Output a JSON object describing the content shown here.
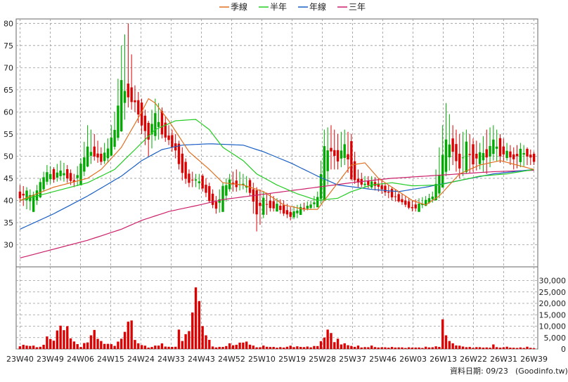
{
  "chart_data": [
    {
      "type": "line",
      "subtype": "candlestick",
      "title": "",
      "legend_position": "top-center",
      "grid": true,
      "ylim": [
        25,
        81
      ],
      "yticks": [
        30,
        35,
        40,
        45,
        50,
        55,
        60,
        65,
        70,
        75,
        80
      ],
      "x_ticks": [
        "23W40",
        "23W49",
        "24W06",
        "24W15",
        "24W24",
        "24W33",
        "24W43",
        "24W52",
        "25W10",
        "25W19",
        "25W28",
        "25W37",
        "25W46",
        "26W03",
        "26W13",
        "26W22",
        "26W31",
        "26W39"
      ],
      "legend": [
        {
          "label": "季線",
          "color": "#e07020"
        },
        {
          "label": "半年",
          "color": "#22cc22"
        },
        {
          "label": "年線",
          "color": "#1a5fc4"
        },
        {
          "label": "三年",
          "color": "#cc1f6a"
        }
      ],
      "colors": {
        "up": "#00aa00",
        "down": "#dd0000"
      },
      "anchors": [
        [
          0,
          42,
          40.5,
          43.5,
          39.5
        ],
        [
          2,
          40.5,
          42,
          43,
          38
        ],
        [
          4,
          38,
          41,
          42,
          37.5
        ],
        [
          6,
          41,
          44,
          45,
          40.5
        ],
        [
          8,
          44,
          46.5,
          48,
          43.5
        ],
        [
          10,
          46.5,
          45,
          47.5,
          44
        ],
        [
          12,
          45,
          47,
          49,
          44.5
        ],
        [
          14,
          47,
          45,
          48,
          44
        ],
        [
          16,
          45,
          44,
          46,
          43
        ],
        [
          18,
          44,
          48,
          49.5,
          43.5
        ],
        [
          20,
          48,
          52,
          57,
          47.5
        ],
        [
          22,
          52,
          50,
          55,
          49
        ],
        [
          24,
          50,
          49,
          52,
          48
        ],
        [
          26,
          49,
          52,
          54,
          48.5
        ],
        [
          28,
          52,
          56,
          60,
          51.5
        ],
        [
          30,
          56,
          67,
          75,
          55.5
        ],
        [
          32,
          67,
          63,
          80,
          61
        ],
        [
          34,
          63,
          62,
          66,
          60
        ],
        [
          36,
          62,
          57,
          63,
          55
        ],
        [
          38,
          57,
          54,
          58,
          50
        ],
        [
          40,
          54,
          60,
          63,
          53.5
        ],
        [
          42,
          60,
          55,
          61,
          54
        ],
        [
          44,
          55,
          53.5,
          57,
          52.5
        ],
        [
          46,
          53.5,
          51,
          55,
          49.5
        ],
        [
          48,
          51,
          46,
          52,
          44.5
        ],
        [
          50,
          46,
          44,
          47,
          43
        ],
        [
          52,
          44,
          45,
          46,
          43
        ],
        [
          54,
          45,
          43,
          46,
          42
        ],
        [
          56,
          43,
          40,
          44,
          39.5
        ],
        [
          58,
          40,
          38,
          41,
          37
        ],
        [
          60,
          38,
          43,
          44,
          37.5
        ],
        [
          62,
          43,
          44.5,
          46,
          42
        ],
        [
          64,
          44.5,
          43,
          47,
          42
        ],
        [
          66,
          43,
          44,
          46,
          42.5
        ],
        [
          68,
          44,
          42,
          45,
          41
        ],
        [
          70,
          42,
          37,
          43,
          33
        ],
        [
          72,
          37,
          40.5,
          42,
          36
        ],
        [
          74,
          40.5,
          38,
          41.5,
          37.5
        ],
        [
          76,
          38,
          39,
          40.5,
          37.5
        ],
        [
          78,
          39,
          37,
          40,
          36.5
        ],
        [
          80,
          37,
          36.5,
          38.5,
          35.5
        ],
        [
          82,
          36.5,
          38,
          39,
          36
        ],
        [
          84,
          38,
          38.5,
          39.5,
          37.5
        ],
        [
          86,
          38.5,
          39,
          40,
          38
        ],
        [
          88,
          39,
          40.5,
          42,
          38.5
        ],
        [
          90,
          40.5,
          52,
          56,
          40
        ],
        [
          92,
          52,
          51,
          57,
          47
        ],
        [
          94,
          51,
          49,
          55,
          47
        ],
        [
          96,
          49,
          53,
          56,
          48
        ],
        [
          98,
          53,
          45,
          55,
          44.5
        ],
        [
          100,
          45,
          44,
          47,
          43
        ],
        [
          102,
          44,
          43.5,
          45.5,
          43
        ],
        [
          104,
          43.5,
          44,
          45.5,
          42.5
        ],
        [
          106,
          44,
          43,
          45,
          42
        ],
        [
          108,
          43,
          42,
          44,
          41
        ],
        [
          110,
          42,
          41,
          43,
          40
        ],
        [
          112,
          41,
          40,
          42,
          39.5
        ],
        [
          114,
          40,
          39,
          41,
          38.5
        ],
        [
          116,
          39,
          38,
          40,
          37.5
        ],
        [
          118,
          38,
          39,
          40.5,
          37.5
        ],
        [
          120,
          39,
          40,
          41,
          39
        ],
        [
          122,
          40,
          41,
          42,
          39.5
        ],
        [
          124,
          41,
          46,
          52,
          40.5
        ],
        [
          126,
          46,
          54,
          62,
          45.5
        ],
        [
          128,
          54,
          51,
          57,
          48
        ],
        [
          130,
          51,
          47,
          55,
          45
        ],
        [
          132,
          47,
          53,
          56,
          46
        ],
        [
          134,
          53,
          48,
          54,
          46.5
        ],
        [
          136,
          48,
          51,
          53,
          47
        ],
        [
          138,
          51,
          50,
          56,
          46
        ],
        [
          140,
          50,
          54,
          57,
          49
        ],
        [
          142,
          54,
          50,
          55,
          48.5
        ],
        [
          144,
          50,
          51,
          53,
          49
        ],
        [
          146,
          51,
          49,
          52,
          47
        ],
        [
          148,
          49,
          51.5,
          53,
          47.5
        ],
        [
          150,
          51.5,
          50,
          52,
          48
        ],
        [
          152,
          50,
          49,
          51,
          48
        ]
      ],
      "ma_quarter": [
        [
          0,
          40
        ],
        [
          10,
          43
        ],
        [
          20,
          45
        ],
        [
          24,
          47
        ],
        [
          30,
          52
        ],
        [
          36,
          60
        ],
        [
          38,
          63
        ],
        [
          40,
          62
        ],
        [
          44,
          58
        ],
        [
          50,
          51
        ],
        [
          56,
          47
        ],
        [
          60,
          44
        ],
        [
          66,
          43.5
        ],
        [
          72,
          42
        ],
        [
          78,
          39
        ],
        [
          84,
          38
        ],
        [
          88,
          38
        ],
        [
          94,
          44
        ],
        [
          98,
          48
        ],
        [
          102,
          48.5
        ],
        [
          106,
          45
        ],
        [
          110,
          43
        ],
        [
          116,
          40
        ],
        [
          120,
          39
        ],
        [
          124,
          41
        ],
        [
          130,
          46
        ],
        [
          136,
          48
        ],
        [
          142,
          49
        ],
        [
          152,
          47
        ]
      ],
      "ma_half": [
        [
          0,
          40
        ],
        [
          10,
          42
        ],
        [
          20,
          44
        ],
        [
          28,
          47
        ],
        [
          36,
          53
        ],
        [
          40,
          56
        ],
        [
          46,
          58
        ],
        [
          52,
          58.3
        ],
        [
          56,
          56
        ],
        [
          60,
          52
        ],
        [
          66,
          49
        ],
        [
          70,
          46
        ],
        [
          76,
          43.5
        ],
        [
          82,
          41.5
        ],
        [
          88,
          40
        ],
        [
          94,
          40.5
        ],
        [
          98,
          42
        ],
        [
          104,
          43.5
        ],
        [
          110,
          44
        ],
        [
          116,
          43.3
        ],
        [
          124,
          43.5
        ],
        [
          130,
          44.5
        ],
        [
          136,
          45.5
        ],
        [
          144,
          46
        ],
        [
          152,
          47
        ]
      ],
      "ma_year": [
        [
          0,
          33.5
        ],
        [
          10,
          37
        ],
        [
          20,
          41
        ],
        [
          30,
          45.5
        ],
        [
          36,
          49
        ],
        [
          42,
          51.5
        ],
        [
          48,
          52.5
        ],
        [
          56,
          52.8
        ],
        [
          66,
          52.5
        ],
        [
          72,
          51
        ],
        [
          80,
          48.5
        ],
        [
          88,
          45.5
        ],
        [
          94,
          43.5
        ],
        [
          104,
          42.5
        ],
        [
          112,
          42
        ],
        [
          120,
          43
        ],
        [
          130,
          44.5
        ],
        [
          140,
          46
        ],
        [
          152,
          47
        ]
      ],
      "ma_3yr": [
        [
          0,
          27
        ],
        [
          10,
          29
        ],
        [
          20,
          31
        ],
        [
          30,
          33.5
        ],
        [
          36,
          35.5
        ],
        [
          44,
          37.5
        ],
        [
          52,
          38.8
        ],
        [
          60,
          40.2
        ],
        [
          70,
          41.2
        ],
        [
          80,
          42.2
        ],
        [
          90,
          43.2
        ],
        [
          100,
          44.2
        ],
        [
          110,
          45
        ],
        [
          120,
          45.5
        ],
        [
          130,
          46
        ],
        [
          140,
          46.5
        ],
        [
          152,
          46.8
        ]
      ]
    },
    {
      "type": "bar",
      "title": "",
      "grid": true,
      "ylim": [
        0,
        36000
      ],
      "ytick_labels": [
        "30,000",
        "25,000",
        "20,000",
        "15,000",
        "10,000",
        "5,000",
        "0"
      ],
      "yticks": [
        30000,
        25000,
        20000,
        15000,
        10000,
        5000,
        0
      ],
      "color": "#dd0000",
      "volume_anchors": [
        [
          0,
          2000
        ],
        [
          4,
          1500
        ],
        [
          6,
          1000
        ],
        [
          10,
          5500
        ],
        [
          12,
          11500
        ],
        [
          14,
          10000
        ],
        [
          16,
          3500
        ],
        [
          18,
          1200
        ],
        [
          20,
          4000
        ],
        [
          22,
          9000
        ],
        [
          24,
          3500
        ],
        [
          26,
          2500
        ],
        [
          28,
          2000
        ],
        [
          30,
          4500
        ],
        [
          32,
          12500
        ],
        [
          34,
          4000
        ],
        [
          36,
          2000
        ],
        [
          38,
          1000
        ],
        [
          40,
          800
        ],
        [
          42,
          2500
        ],
        [
          44,
          1000
        ],
        [
          46,
          1200
        ],
        [
          48,
          16000
        ],
        [
          50,
          9000
        ],
        [
          52,
          2500
        ],
        [
          54,
          1500
        ],
        [
          56,
          1200
        ],
        [
          58,
          1000
        ],
        [
          60,
          1000
        ],
        [
          62,
          2500
        ],
        [
          64,
          2000
        ],
        [
          66,
          4000
        ],
        [
          68,
          2500
        ],
        [
          70,
          800
        ],
        [
          72,
          1500
        ],
        [
          74,
          1000
        ],
        [
          76,
          900
        ],
        [
          78,
          800
        ],
        [
          80,
          1500
        ],
        [
          82,
          1200
        ],
        [
          84,
          1000
        ],
        [
          86,
          1200
        ],
        [
          88,
          1500
        ],
        [
          90,
          7000
        ],
        [
          92,
          4000
        ],
        [
          94,
          3500
        ],
        [
          96,
          2000
        ],
        [
          98,
          1500
        ],
        [
          100,
          1000
        ],
        [
          102,
          900
        ],
        [
          104,
          800
        ],
        [
          106,
          900
        ],
        [
          108,
          800
        ],
        [
          110,
          900
        ],
        [
          112,
          800
        ],
        [
          114,
          700
        ],
        [
          116,
          800
        ],
        [
          118,
          700
        ],
        [
          120,
          800
        ],
        [
          122,
          900
        ],
        [
          124,
          1500
        ],
        [
          126,
          6000
        ],
        [
          128,
          3500
        ],
        [
          130,
          1500
        ],
        [
          132,
          1000
        ],
        [
          134,
          800
        ],
        [
          136,
          900
        ],
        [
          138,
          700
        ],
        [
          140,
          1000
        ],
        [
          142,
          800
        ],
        [
          144,
          700
        ],
        [
          146,
          600
        ],
        [
          148,
          700
        ],
        [
          150,
          600
        ],
        [
          152,
          500
        ]
      ],
      "volume_spikes": [
        [
          8,
          5500
        ],
        [
          30,
          4500
        ],
        [
          33,
          12500
        ],
        [
          48,
          3500
        ],
        [
          49,
          6500
        ],
        [
          51,
          16000
        ],
        [
          52,
          27000
        ],
        [
          53,
          21000
        ],
        [
          54,
          10000
        ],
        [
          55,
          6000
        ],
        [
          56,
          4000
        ],
        [
          90,
          5000
        ],
        [
          91,
          8500
        ],
        [
          92,
          7000
        ],
        [
          93,
          3000
        ],
        [
          94,
          4500
        ],
        [
          95,
          2000
        ],
        [
          96,
          2500
        ],
        [
          125,
          13000
        ],
        [
          126,
          6000
        ],
        [
          127,
          3500
        ],
        [
          128,
          2500
        ],
        [
          40,
          1500
        ],
        [
          41,
          1500
        ],
        [
          35,
          2500
        ],
        [
          120,
          1000
        ],
        [
          100,
          1500
        ],
        [
          104,
          1500
        ],
        [
          140,
          2000
        ],
        [
          144,
          1000
        ],
        [
          150,
          1000
        ]
      ]
    }
  ],
  "footer": {
    "label": "資料日期: 09/23",
    "source": "(Goodinfo.tw)"
  }
}
